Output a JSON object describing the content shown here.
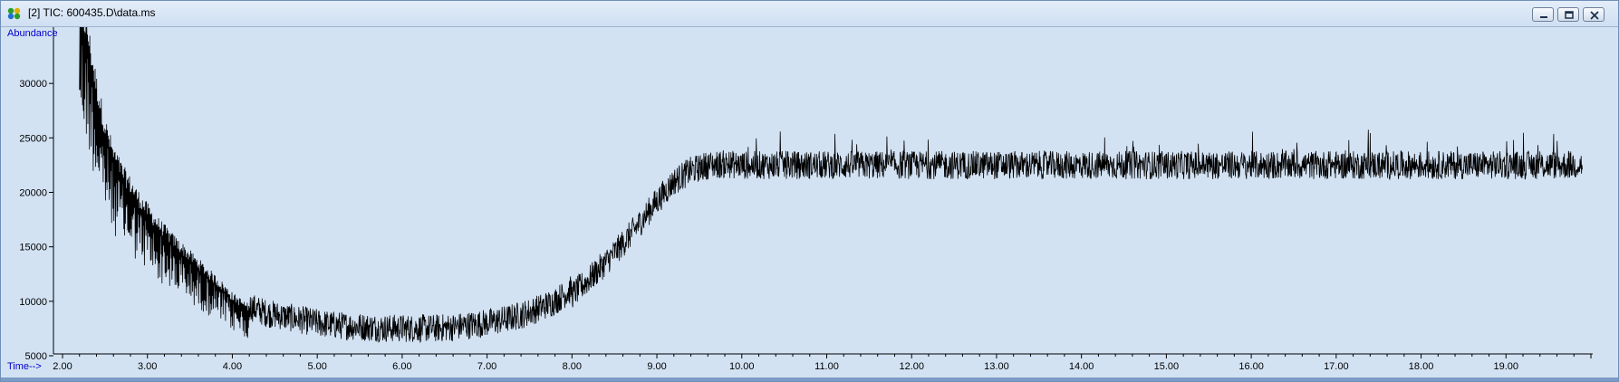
{
  "window": {
    "title": "[2] TIC: 600435.D\\data.ms",
    "minimize_icon": "minimize-icon",
    "restore_icon": "restore-icon",
    "close_icon": "close-icon"
  },
  "colors": {
    "plot_background": "#d3e2f3",
    "trace": "#000000",
    "axis_title": "#0000cc"
  },
  "chart_data": {
    "type": "line",
    "ylabel": "Abundance",
    "xlabel": "Time-->",
    "xlim": [
      2.0,
      20.0
    ],
    "ylim": [
      5000,
      35000
    ],
    "x_ticks": [
      "2.00",
      "3.00",
      "4.00",
      "5.00",
      "6.00",
      "7.00",
      "8.00",
      "9.00",
      "10.00",
      "11.00",
      "12.00",
      "13.00",
      "14.00",
      "15.00",
      "16.00",
      "17.00",
      "18.00",
      "19.00"
    ],
    "y_ticks": [
      "5000",
      "10000",
      "15000",
      "20000",
      "25000",
      "30000"
    ],
    "grid": false,
    "series": [
      {
        "x": [
          2.2,
          2.3,
          2.4,
          2.5,
          2.6,
          2.7,
          2.8,
          2.9,
          3.0,
          3.1,
          3.2,
          3.3,
          3.4,
          3.5,
          3.6,
          3.7,
          3.8,
          3.9,
          4.0,
          4.2,
          4.4,
          4.6,
          4.8,
          5.0,
          5.2,
          5.4,
          5.6,
          5.8,
          6.0,
          6.2,
          6.4,
          6.6,
          6.8,
          7.0,
          7.2,
          7.4,
          7.6,
          7.8,
          8.0,
          8.2,
          8.4,
          8.6,
          8.8,
          9.0,
          9.2,
          9.4,
          9.6,
          9.8,
          10.0,
          10.5,
          11.0,
          11.5,
          12.0,
          12.5,
          13.0,
          13.5,
          14.0,
          14.5,
          15.0,
          15.5,
          16.0,
          16.5,
          17.0,
          17.5,
          18.0,
          18.5,
          19.0,
          19.5,
          19.9
        ],
        "y": [
          36000,
          33000,
          28500,
          25000,
          22500,
          21000,
          19800,
          18600,
          17600,
          16600,
          15800,
          15000,
          14300,
          13600,
          12900,
          12200,
          11500,
          10800,
          10000,
          9000,
          8400,
          8100,
          7800,
          7500,
          7300,
          7200,
          7100,
          7000,
          7000,
          7000,
          7000,
          7100,
          7300,
          7500,
          7800,
          8200,
          8800,
          9500,
          10600,
          12000,
          13600,
          15300,
          17200,
          19200,
          21000,
          22000,
          22500,
          22600,
          22500,
          22500,
          22500,
          22500,
          22500,
          22500,
          22500,
          22500,
          22500,
          22500,
          22500,
          22500,
          22500,
          22500,
          22500,
          22500,
          22500,
          22500,
          22500,
          22500,
          22500
        ]
      }
    ]
  }
}
